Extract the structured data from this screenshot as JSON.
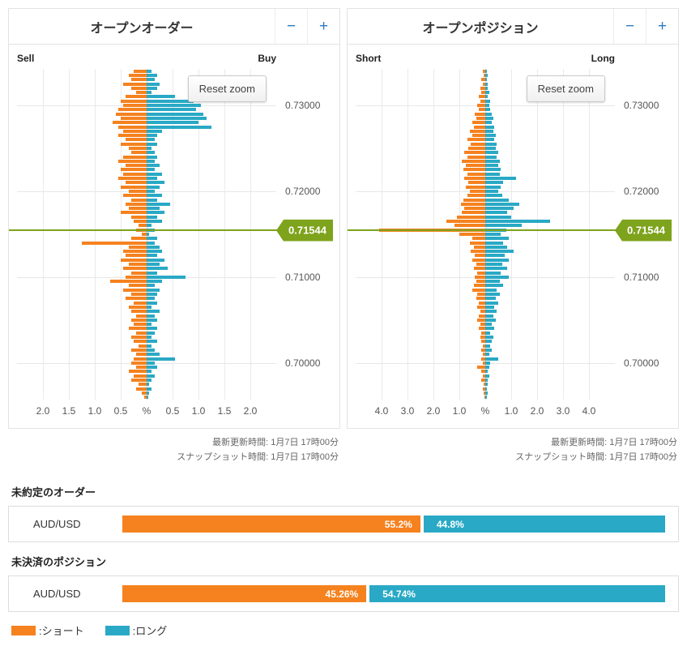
{
  "colors": {
    "sell": "#f5821f",
    "buy": "#29a9c5",
    "price_marker": "#7ea31c",
    "control_blue": "#2e7bbf"
  },
  "panels": [
    {
      "title": "オープンオーダー",
      "zoom_out_label": "−",
      "zoom_in_label": "+",
      "left_side_label": "Sell",
      "right_side_label": "Buy",
      "reset_zoom_label": "Reset zoom",
      "current_price_label": "0.71544",
      "price_labels": [
        "0.73000",
        "0.72000",
        "0.71000",
        "0.70000"
      ],
      "updated_line": "最新更新時間: 1月7日 17時00分",
      "snapshot_line": "スナップショット時間: 1月7日 17時00分"
    },
    {
      "title": "オープンポジション",
      "zoom_out_label": "−",
      "zoom_in_label": "+",
      "left_side_label": "Short",
      "right_side_label": "Long",
      "reset_zoom_label": "Reset zoom",
      "current_price_label": "0.71544",
      "price_labels": [
        "0.73000",
        "0.72000",
        "0.71000",
        "0.70000"
      ],
      "updated_line": "最新更新時間: 1月7日 17時00分",
      "snapshot_line": "スナップショット時間: 1月7日 17時00分"
    }
  ],
  "chart_data": [
    {
      "type": "bar",
      "title": "オープンオーダー",
      "orientation": "diverging-horizontal",
      "instrument": "AUD/USD",
      "price_top": 0.734,
      "price_step": 0.0005,
      "price_gridlines": [
        0.73,
        0.72,
        0.71,
        0.7
      ],
      "current_price": 0.71544,
      "x_max": 2.5,
      "x_ticks": [
        {
          "v": -2,
          "label": "2.0"
        },
        {
          "v": -1.5,
          "label": "1.5"
        },
        {
          "v": -1,
          "label": "1.0"
        },
        {
          "v": -0.5,
          "label": "0.5"
        },
        {
          "v": 0,
          "label": "%"
        },
        {
          "v": 0.5,
          "label": "0.5"
        },
        {
          "v": 1,
          "label": "1.0"
        },
        {
          "v": 1.5,
          "label": "1.5"
        },
        {
          "v": 2,
          "label": "2.0"
        }
      ],
      "series": [
        {
          "name": "Sell",
          "color": "#f5821f",
          "values": [
            0.25,
            0.35,
            0.3,
            0.45,
            0.3,
            0.2,
            0.4,
            0.5,
            0.45,
            0.55,
            0.6,
            0.5,
            0.65,
            0.55,
            0.45,
            0.55,
            0.4,
            0.5,
            0.35,
            0.3,
            0.45,
            0.55,
            0.4,
            0.5,
            0.45,
            0.55,
            0.4,
            0.5,
            0.35,
            0.45,
            0.3,
            0.4,
            0.35,
            0.5,
            0.3,
            0.25,
            0.15,
            0.2,
            0.1,
            0.3,
            1.25,
            0.35,
            0.45,
            0.4,
            0.5,
            0.35,
            0.45,
            0.3,
            0.4,
            0.7,
            0.35,
            0.45,
            0.3,
            0.4,
            0.25,
            0.35,
            0.3,
            0.2,
            0.3,
            0.25,
            0.35,
            0.2,
            0.3,
            0.25,
            0.15,
            0.3,
            0.2,
            0.25,
            0.3,
            0.2,
            0.35,
            0.25,
            0.3,
            0.15,
            0.2,
            0.1,
            0.05
          ]
        },
        {
          "name": "Buy",
          "color": "#29a9c5",
          "values": [
            0.1,
            0.2,
            0.15,
            0.25,
            0.2,
            0.1,
            0.55,
            0.9,
            1.05,
            0.95,
            1.1,
            1.15,
            1.0,
            1.25,
            0.3,
            0.2,
            0.15,
            0.2,
            0.1,
            0.15,
            0.2,
            0.15,
            0.25,
            0.15,
            0.3,
            0.2,
            0.35,
            0.25,
            0.15,
            0.3,
            0.2,
            0.45,
            0.25,
            0.35,
            0.2,
            0.3,
            0.1,
            0.15,
            0.05,
            0.2,
            0.15,
            0.25,
            0.3,
            0.2,
            0.35,
            0.25,
            0.4,
            0.2,
            0.75,
            0.3,
            0.15,
            0.25,
            0.2,
            0.15,
            0.2,
            0.1,
            0.25,
            0.15,
            0.2,
            0.1,
            0.2,
            0.15,
            0.1,
            0.2,
            0.1,
            0.15,
            0.25,
            0.55,
            0.15,
            0.2,
            0.1,
            0.15,
            0.1,
            0.05,
            0.1,
            0.05,
            0.03
          ]
        }
      ]
    },
    {
      "type": "bar",
      "title": "オープンポジション",
      "orientation": "diverging-horizontal",
      "instrument": "AUD/USD",
      "price_top": 0.734,
      "price_step": 0.0005,
      "price_gridlines": [
        0.73,
        0.72,
        0.71,
        0.7
      ],
      "current_price": 0.71544,
      "x_max": 5.0,
      "x_ticks": [
        {
          "v": -4,
          "label": "4.0"
        },
        {
          "v": -3,
          "label": "3.0"
        },
        {
          "v": -2,
          "label": "2.0"
        },
        {
          "v": -1,
          "label": "1.0"
        },
        {
          "v": 0,
          "label": "%"
        },
        {
          "v": 1,
          "label": "1.0"
        },
        {
          "v": 2,
          "label": "2.0"
        },
        {
          "v": 3,
          "label": "3.0"
        },
        {
          "v": 4,
          "label": "4.0"
        }
      ],
      "series": [
        {
          "name": "Short",
          "color": "#f5821f",
          "values": [
            0.1,
            0.05,
            0.15,
            0.1,
            0.2,
            0.15,
            0.25,
            0.2,
            0.3,
            0.25,
            0.4,
            0.35,
            0.5,
            0.45,
            0.6,
            0.5,
            0.7,
            0.55,
            0.65,
            0.8,
            0.7,
            0.9,
            0.75,
            0.85,
            0.7,
            0.8,
            0.65,
            0.75,
            0.6,
            0.7,
            0.85,
            0.95,
            0.8,
            0.9,
            1.1,
            1.5,
            1.2,
            4.1,
            1.0,
            0.5,
            0.6,
            0.45,
            0.55,
            0.4,
            0.5,
            0.35,
            0.45,
            0.3,
            0.4,
            0.35,
            0.45,
            0.5,
            0.3,
            0.35,
            0.25,
            0.3,
            0.2,
            0.25,
            0.3,
            0.2,
            0.25,
            0.15,
            0.2,
            0.15,
            0.1,
            0.15,
            0.1,
            0.15,
            0.1,
            0.3,
            0.15,
            0.1,
            0.15,
            0.05,
            0.1,
            0.05,
            0.03
          ]
        },
        {
          "name": "Long",
          "color": "#29a9c5",
          "values": [
            0.05,
            0.1,
            0.05,
            0.1,
            0.1,
            0.15,
            0.1,
            0.2,
            0.15,
            0.2,
            0.25,
            0.3,
            0.25,
            0.35,
            0.3,
            0.4,
            0.35,
            0.45,
            0.4,
            0.5,
            0.45,
            0.55,
            0.5,
            0.6,
            0.55,
            1.2,
            0.7,
            0.6,
            0.5,
            0.65,
            0.9,
            1.3,
            1.1,
            0.85,
            1.0,
            2.5,
            1.4,
            0.8,
            0.6,
            0.9,
            0.7,
            0.85,
            1.1,
            0.75,
            0.9,
            0.65,
            0.85,
            0.6,
            0.9,
            0.55,
            0.7,
            0.45,
            0.55,
            0.4,
            0.5,
            0.35,
            0.45,
            0.3,
            0.4,
            0.25,
            0.35,
            0.2,
            0.3,
            0.25,
            0.2,
            0.25,
            0.15,
            0.5,
            0.2,
            0.15,
            0.1,
            0.15,
            0.1,
            0.1,
            0.05,
            0.08,
            0.05
          ]
        }
      ]
    }
  ],
  "summary": {
    "orders_heading": "未約定のオーダー",
    "positions_heading": "未決済のポジション",
    "instrument": "AUD/USD",
    "orders": {
      "short_pct": "55.2%",
      "long_pct": "44.8%",
      "short_value": 55.2,
      "long_value": 44.8
    },
    "positions": {
      "short_pct": "45.26%",
      "long_pct": "54.74%",
      "short_value": 45.26,
      "long_value": 54.74
    },
    "legend": [
      {
        "label": ":ショート",
        "color": "#f5821f"
      },
      {
        "label": ":ロング",
        "color": "#29a9c5"
      }
    ]
  }
}
